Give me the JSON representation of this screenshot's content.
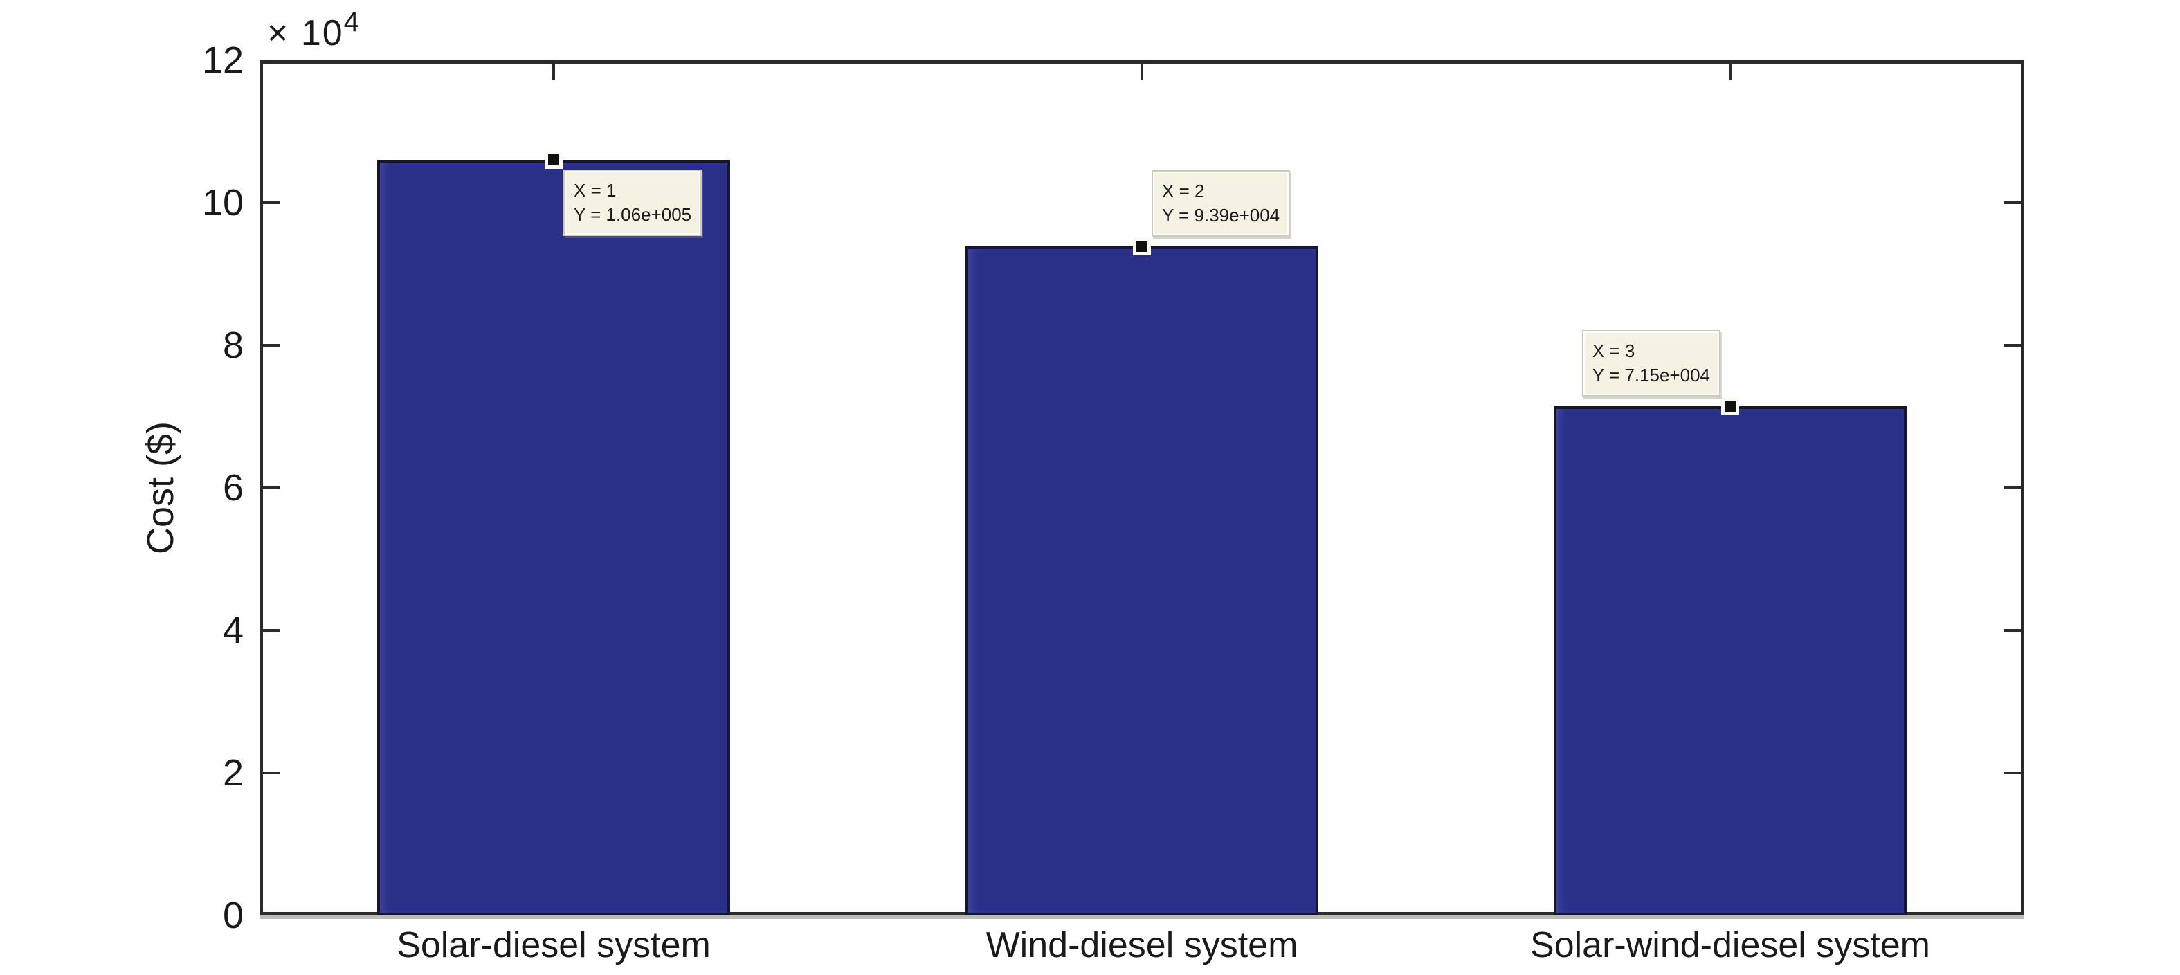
{
  "chart_data": {
    "type": "bar",
    "title": "",
    "xlabel": "",
    "ylabel": "Cost ($)",
    "categories": [
      "Solar-diesel system",
      "Wind-diesel system",
      "Solar-wind-diesel system"
    ],
    "x_positions": [
      1,
      2,
      3
    ],
    "values": [
      106000,
      93900,
      71500
    ],
    "ylim": [
      0,
      120000
    ],
    "x_range": [
      0.5,
      3.5
    ],
    "bar_width_fraction": 0.6,
    "grid": false,
    "axis_box": true,
    "y_tick_values": [
      0,
      20000,
      40000,
      60000,
      80000,
      100000,
      120000
    ],
    "y_tick_labels": [
      "0",
      "2",
      "4",
      "6",
      "8",
      "10",
      "12"
    ],
    "y_axis_exponent": {
      "multiplier": "× 10",
      "power": "4"
    },
    "datatips": [
      {
        "x": 1,
        "y": 106000,
        "line1": "X = 1",
        "line2": "Y = 1.06e+005",
        "placement": "below-right"
      },
      {
        "x": 2,
        "y": 93900,
        "line1": "X = 2",
        "line2": "Y = 9.39e+004",
        "placement": "above-right"
      },
      {
        "x": 3,
        "y": 71500,
        "line1": "X = 3",
        "line2": "Y = 7.15e+004",
        "placement": "above-left"
      }
    ]
  },
  "colors": {
    "bar_fill": "#2a3088",
    "bar_edge": "#15152c",
    "axis": "#2b2b2b",
    "background": "#ffffff",
    "datatip_bg": "#f5f2e3",
    "datatip_border": "#cfcbba",
    "text": "#1a1a1a"
  }
}
